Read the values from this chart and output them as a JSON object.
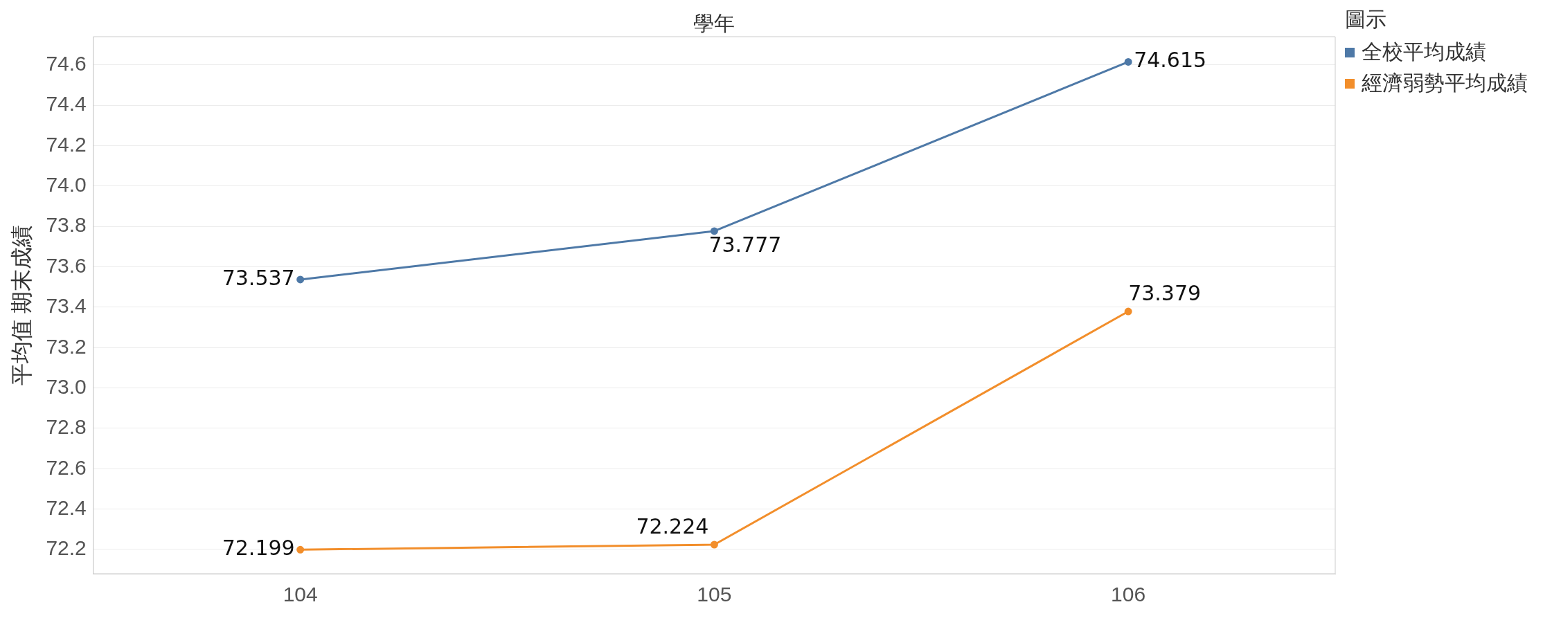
{
  "chart_data": {
    "type": "line",
    "xlabel": "學年",
    "ylabel": "平均值 期末成績",
    "legend_title": "圖示",
    "categories": [
      "104",
      "105",
      "106"
    ],
    "series": [
      {
        "name": "全校平均成績",
        "color": "#4e79a7",
        "values": [
          73.537,
          73.777,
          74.615
        ]
      },
      {
        "name": "經濟弱勢平均成績",
        "color": "#f28e2b",
        "values": [
          72.199,
          72.224,
          73.379
        ]
      }
    ],
    "ylim": [
      72.08,
      74.74
    ],
    "yticks": [
      {
        "value": 72.2,
        "label": "72.2"
      },
      {
        "value": 72.4,
        "label": "72.4"
      },
      {
        "value": 72.6,
        "label": "72.6"
      },
      {
        "value": 72.8,
        "label": "72.8"
      },
      {
        "value": 73.0,
        "label": "73.0"
      },
      {
        "value": 73.2,
        "label": "73.2"
      },
      {
        "value": 73.4,
        "label": "73.4"
      },
      {
        "value": 73.6,
        "label": "73.6"
      },
      {
        "value": 73.8,
        "label": "73.8"
      },
      {
        "value": 74.0,
        "label": "74.0"
      },
      {
        "value": 74.2,
        "label": "74.2"
      },
      {
        "value": 74.4,
        "label": "74.4"
      },
      {
        "value": 74.6,
        "label": "74.6"
      }
    ],
    "grid": "y",
    "legend": "right",
    "marker": "circle",
    "line_style": "solid",
    "data_labels": true
  }
}
